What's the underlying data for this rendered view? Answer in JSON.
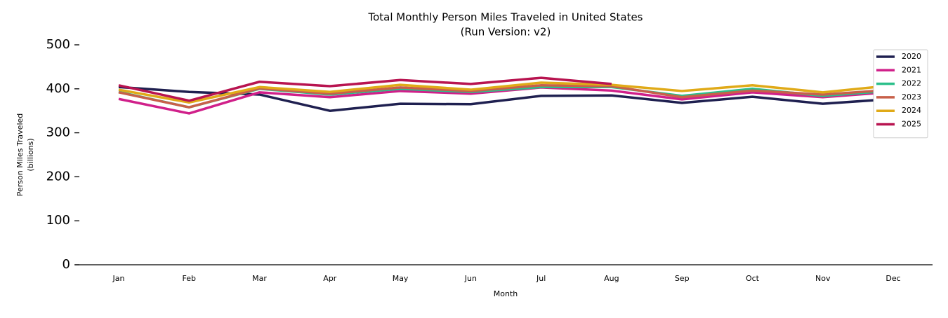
{
  "chart_data": {
    "type": "line",
    "title": "Total Monthly Person Miles Traveled in United States",
    "subtitle": "(Run Version: v2)",
    "x_label": "Month",
    "y_label": [
      "Person Miles Traveled",
      "(billions)"
    ],
    "categories": [
      "Jan",
      "Feb",
      "Mar",
      "Apr",
      "May",
      "Jun",
      "Jul",
      "Aug",
      "Sep",
      "Oct",
      "Nov",
      "Dec"
    ],
    "ylim": [
      0,
      500
    ],
    "yticks": [
      0,
      100,
      200,
      300,
      400,
      500
    ],
    "legend": "upper right",
    "series": [
      {
        "name": "2020",
        "color": "#1f2050",
        "values": [
          404,
          393,
          387,
          350,
          366,
          365,
          384,
          385,
          368,
          382,
          366,
          377
        ]
      },
      {
        "name": "2021",
        "color": "#d0208a",
        "values": [
          377,
          344,
          392,
          381,
          395,
          389,
          403,
          396,
          376,
          392,
          381,
          393
        ]
      },
      {
        "name": "2022",
        "color": "#2bbf8a",
        "values": [
          393,
          358,
          400,
          387,
          400,
          393,
          404,
          404,
          384,
          400,
          384,
          396
        ]
      },
      {
        "name": "2023",
        "color": "#c8604a",
        "values": [
          392,
          358,
          401,
          389,
          403,
          395,
          408,
          406,
          381,
          396,
          387,
          398
        ]
      },
      {
        "name": "2024",
        "color": "#e0aa18",
        "values": [
          398,
          369,
          404,
          393,
          409,
          398,
          414,
          409,
          395,
          408,
          392,
          408
        ]
      },
      {
        "name": "2025",
        "color": "#b81450",
        "values": [
          408,
          373,
          416,
          406,
          420,
          411,
          425,
          411,
          null,
          null,
          null,
          null
        ]
      }
    ]
  }
}
